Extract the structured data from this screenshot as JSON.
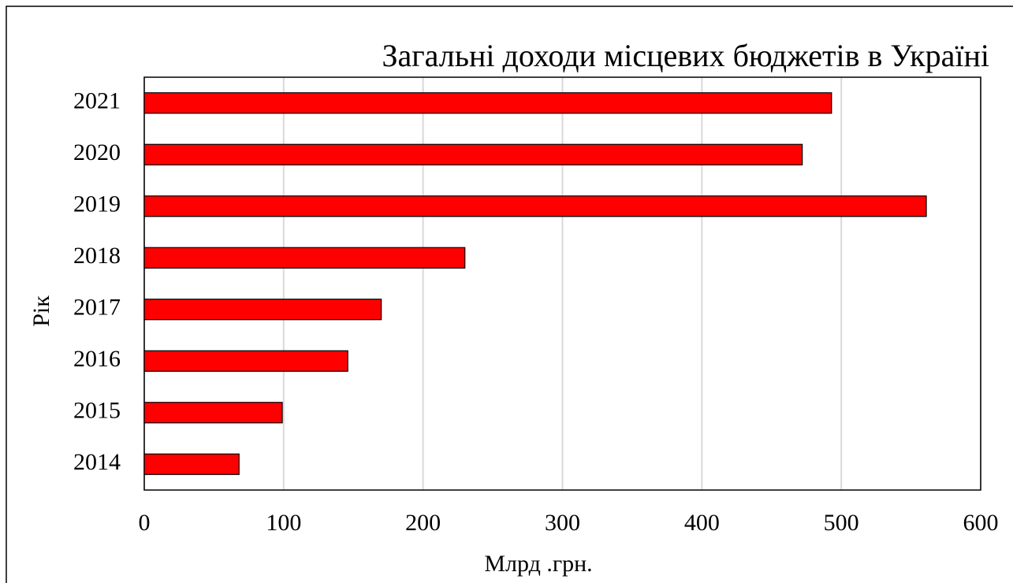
{
  "chart_data": {
    "type": "bar",
    "orientation": "horizontal",
    "title": "Загальні доходи місцевих бюджетів в Україні",
    "x_label": "Млрд .грн.",
    "y_label": "Рік",
    "categories": [
      "2014",
      "2015",
      "2016",
      "2017",
      "2018",
      "2019",
      "2020",
      "2021"
    ],
    "values": [
      68,
      99,
      146,
      170,
      230,
      561,
      472,
      493
    ],
    "color": "#ff0000",
    "xlim": [
      0,
      600
    ],
    "xticks": [
      0,
      100,
      200,
      300,
      400,
      500,
      600
    ],
    "grid": true
  }
}
